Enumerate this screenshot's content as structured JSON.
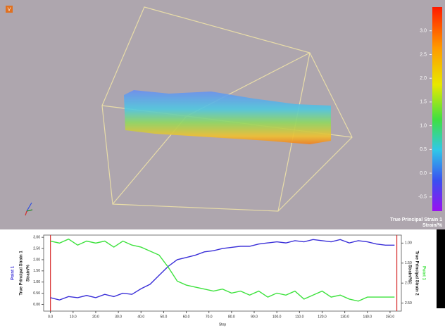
{
  "colorbar": {
    "title": "True Principal Strain 1",
    "unit": "Strain/%",
    "lim": [
      -0.8,
      3.5
    ],
    "ticks": [
      {
        "value": 3.0,
        "label": "3.0"
      },
      {
        "value": 2.5,
        "label": "2.5"
      },
      {
        "value": 2.0,
        "label": "2.0"
      },
      {
        "value": 1.5,
        "label": "1.5"
      },
      {
        "value": 1.0,
        "label": "1.0"
      },
      {
        "value": 0.5,
        "label": "0.5"
      },
      {
        "value": 0.0,
        "label": "0.0"
      },
      {
        "value": -0.5,
        "label": "-0.5"
      }
    ]
  },
  "view_badge": "V",
  "chart_data": {
    "type": "line",
    "xlabel": "Step",
    "ylabel": [
      "Point 1",
      "True Principal Strain 1",
      "Strain/%"
    ],
    "y2label": [
      "Point 1",
      "True Principal Strain 2",
      "Strain/%"
    ],
    "x": [
      0,
      4,
      8,
      12,
      16,
      20,
      24,
      28,
      32,
      36,
      40,
      44,
      48,
      52,
      56,
      60,
      64,
      68,
      72,
      76,
      80,
      84,
      88,
      92,
      96,
      100,
      104,
      108,
      112,
      116,
      120,
      124,
      128,
      132,
      136,
      140,
      144,
      148,
      152
    ],
    "series": [
      {
        "name": "Point 1",
        "color": "#3a2fd8",
        "values": [
          0.3,
          0.2,
          0.35,
          0.3,
          0.4,
          0.3,
          0.45,
          0.35,
          0.5,
          0.45,
          0.7,
          0.9,
          1.3,
          1.7,
          2.0,
          2.1,
          2.2,
          2.35,
          2.4,
          2.5,
          2.55,
          2.6,
          2.6,
          2.7,
          2.75,
          2.8,
          2.75,
          2.85,
          2.8,
          2.9,
          2.85,
          2.8,
          2.9,
          2.75,
          2.85,
          2.8,
          2.7,
          2.65,
          2.65
        ]
      },
      {
        "name": "Point 1",
        "color": "#3ee23e",
        "axis": "y2",
        "values": [
          0.95,
          1.0,
          0.9,
          1.05,
          0.95,
          1.0,
          0.95,
          1.1,
          0.95,
          1.05,
          1.1,
          1.2,
          1.3,
          1.6,
          1.95,
          2.05,
          2.1,
          2.15,
          2.2,
          2.15,
          2.25,
          2.2,
          2.3,
          2.2,
          2.35,
          2.25,
          2.3,
          2.2,
          2.4,
          2.3,
          2.2,
          2.35,
          2.3,
          2.4,
          2.45,
          2.35,
          2.35,
          2.35,
          2.35
        ]
      }
    ],
    "vlines": [
      0,
      153
    ],
    "vline_color": "#d83030",
    "xlim": [
      -3,
      155
    ],
    "xticks": [
      {
        "value": 0,
        "label": "0.0"
      },
      {
        "value": 10,
        "label": "10.0"
      },
      {
        "value": 20,
        "label": "20.0"
      },
      {
        "value": 30,
        "label": "30.0"
      },
      {
        "value": 40,
        "label": "40.0"
      },
      {
        "value": 50,
        "label": "50.0"
      },
      {
        "value": 60,
        "label": "60.0"
      },
      {
        "value": 70,
        "label": "70.0"
      },
      {
        "value": 80,
        "label": "80.0"
      },
      {
        "value": 90,
        "label": "90.0"
      },
      {
        "value": 100,
        "label": "100.0"
      },
      {
        "value": 110,
        "label": "110.0"
      },
      {
        "value": 120,
        "label": "120.0"
      },
      {
        "value": 130,
        "label": "130.0"
      },
      {
        "value": 140,
        "label": "140.0"
      },
      {
        "value": 150,
        "label": "150.0"
      }
    ],
    "ylim": [
      -0.3,
      3.1
    ],
    "yticks": [
      {
        "value": 0,
        "label": "0.00"
      },
      {
        "value": 0.5,
        "label": "0.50"
      },
      {
        "value": 1,
        "label": "1.00"
      },
      {
        "value": 1.5,
        "label": "1.50"
      },
      {
        "value": 2,
        "label": "2.00"
      },
      {
        "value": 2.5,
        "label": "2.50"
      },
      {
        "value": 3,
        "label": "3.00"
      }
    ],
    "y2lim": [
      2.7,
      0.8
    ],
    "y2ticks": [
      {
        "value": 1,
        "label": "1.00"
      },
      {
        "value": 1.5,
        "label": "1.50"
      },
      {
        "value": 2,
        "label": "2.00"
      },
      {
        "value": 2.5,
        "label": "2.50"
      }
    ]
  }
}
